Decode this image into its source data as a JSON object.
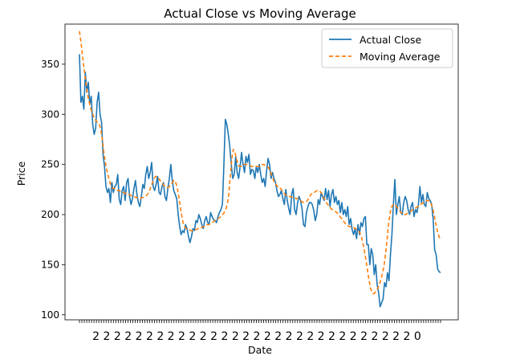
{
  "chart_data": {
    "type": "line",
    "title": "Actual Close vs Moving Average",
    "xlabel": "Date",
    "ylabel": "Price",
    "ylim": [
      95,
      390
    ],
    "yticks": [
      100,
      150,
      200,
      250,
      300,
      350
    ],
    "grid": false,
    "legend_position": "top-right",
    "x_tick_count": 150,
    "x_tick_labels_note": "overlapping, illegible",
    "series": [
      {
        "name": "Actual Close",
        "color": "#1f77b4",
        "style": "solid",
        "values": [
          360,
          312,
          318,
          305,
          342,
          322,
          332,
          310,
          318,
          290,
          280,
          286,
          312,
          322,
          300,
          292,
          260,
          248,
          228,
          222,
          226,
          212,
          232,
          222,
          228,
          230,
          240,
          215,
          210,
          224,
          228,
          214,
          232,
          236,
          218,
          210,
          216,
          226,
          234,
          220,
          212,
          208,
          218,
          230,
          226,
          240,
          248,
          236,
          242,
          252,
          228,
          224,
          230,
          238,
          222,
          220,
          228,
          232,
          218,
          214,
          226,
          236,
          250,
          234,
          224,
          220,
          216,
          200,
          188,
          180,
          184,
          182,
          190,
          186,
          178,
          172,
          178,
          186,
          184,
          194,
          192,
          200,
          196,
          190,
          186,
          194,
          198,
          192,
          190,
          202,
          198,
          195,
          194,
          192,
          198,
          202,
          205,
          210,
          250,
          295,
          290,
          280,
          268,
          250,
          236,
          240,
          258,
          242,
          236,
          248,
          262,
          250,
          242,
          258,
          252,
          260,
          240,
          245,
          244,
          236,
          248,
          242,
          250,
          240,
          232,
          236,
          228,
          244,
          256,
          250,
          236,
          242,
          236,
          232,
          224,
          218,
          220,
          224,
          216,
          210,
          225,
          214,
          206,
          200,
          220,
          226,
          205,
          200,
          212,
          218,
          214,
          206,
          190,
          188,
          202,
          208,
          212,
          212,
          210,
          204,
          194,
          200,
          215,
          210,
          222,
          218,
          214,
          226,
          215,
          224,
          208,
          220,
          225,
          212,
          218,
          210,
          214,
          202,
          212,
          200,
          205,
          198,
          208,
          190,
          196,
          185,
          180,
          186,
          176,
          190,
          180,
          192,
          188,
          196,
          198,
          170,
          170,
          150,
          166,
          160,
          140,
          150,
          130,
          122,
          108,
          112,
          116,
          132,
          128,
          142,
          134,
          160,
          180,
          210,
          235,
          200,
          210,
          218,
          202,
          200,
          212,
          218,
          214,
          205,
          200,
          208,
          212,
          198,
          205,
          202,
          210,
          228,
          212,
          220,
          210,
          208,
          222,
          216,
          214,
          210,
          195,
          165,
          160,
          146,
          143,
          142
        ]
      },
      {
        "name": "Moving Average",
        "color": "#ff7f0e",
        "style": "dashed",
        "values": [
          383,
          372,
          358,
          346,
          334,
          323,
          315,
          308,
          303,
          299,
          296,
          293,
          292,
          290,
          285,
          275,
          262,
          252,
          244,
          238,
          232,
          228,
          226,
          226,
          225,
          224,
          224,
          223,
          222,
          222,
          221,
          221,
          220,
          220,
          219,
          218,
          218,
          217,
          217,
          216,
          216,
          217,
          217,
          218,
          219,
          221,
          224,
          228,
          232,
          236,
          238,
          238,
          236,
          234,
          232,
          230,
          228,
          227,
          227,
          228,
          230,
          232,
          234,
          233,
          228,
          220,
          210,
          200,
          192,
          188,
          186,
          185,
          185,
          184,
          184,
          184,
          185,
          185,
          186,
          186,
          187,
          188,
          188,
          189,
          190,
          190,
          191,
          192,
          193,
          194,
          195,
          196,
          197,
          198,
          200,
          202,
          205,
          210,
          220,
          238,
          256,
          265,
          262,
          256,
          250,
          248,
          248,
          249,
          250,
          250,
          250,
          250,
          249,
          248,
          248,
          248,
          248,
          248,
          248,
          249,
          250,
          250,
          249,
          248,
          247,
          244,
          240,
          236,
          232,
          230,
          228,
          228,
          226,
          224,
          222,
          220,
          219,
          218,
          218,
          218,
          217,
          217,
          216,
          216,
          215,
          214,
          213,
          212,
          212,
          213,
          215,
          218,
          220,
          222,
          222,
          223,
          224,
          224,
          223,
          221,
          218,
          215,
          212,
          210,
          208,
          206,
          205,
          204,
          203,
          202,
          200,
          198,
          196,
          194,
          192,
          190,
          189,
          188,
          188,
          187,
          187,
          186,
          185,
          184,
          182,
          178,
          172,
          164,
          155,
          145,
          135,
          127,
          122,
          121,
          122,
          124,
          127,
          131,
          136,
          142,
          150,
          162,
          177,
          192,
          202,
          208,
          210,
          210,
          208,
          206,
          204,
          202,
          201,
          200,
          200,
          201,
          202,
          203,
          204,
          205,
          206,
          207,
          208,
          209,
          210,
          211,
          212,
          213,
          214,
          214,
          213,
          210,
          205,
          198,
          190,
          183,
          178,
          175
        ]
      }
    ]
  }
}
